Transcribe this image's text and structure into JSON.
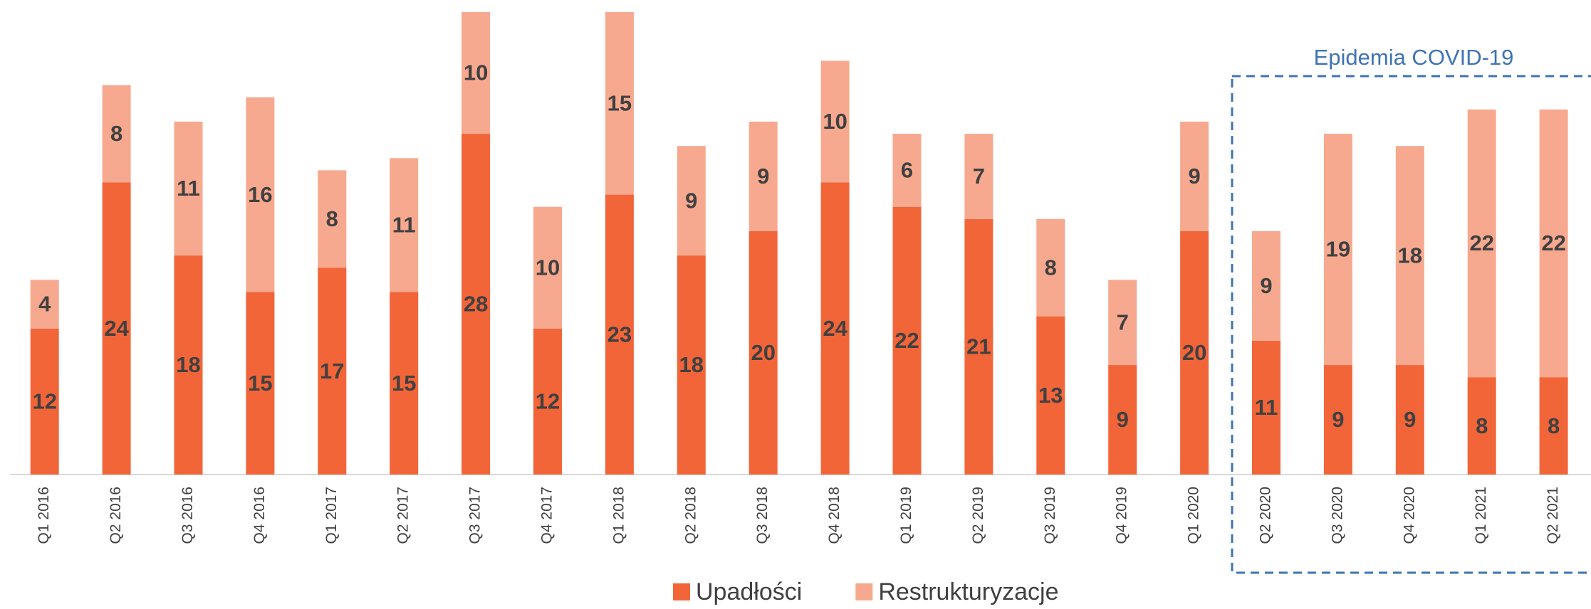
{
  "chart_data": {
    "type": "stacked_bar",
    "categories": [
      "Q1 2016",
      "Q2 2016",
      "Q3 2016",
      "Q4 2016",
      "Q1 2017",
      "Q2 2017",
      "Q3 2017",
      "Q4 2017",
      "Q1 2018",
      "Q2 2018",
      "Q3 2018",
      "Q4 2018",
      "Q1 2019",
      "Q2 2019",
      "Q3 2019",
      "Q4 2019",
      "Q1 2020",
      "Q2 2020",
      "Q3 2020",
      "Q4 2020",
      "Q1 2021",
      "Q2 2021"
    ],
    "series": [
      {
        "name": "Upadłości",
        "color": "#f26539",
        "values": [
          12,
          24,
          18,
          15,
          17,
          15,
          28,
          12,
          23,
          18,
          20,
          24,
          22,
          21,
          13,
          9,
          20,
          11,
          9,
          9,
          8,
          8
        ]
      },
      {
        "name": "Restrukturyzacje",
        "color": "#f7a98f",
        "values": [
          4,
          8,
          11,
          16,
          8,
          11,
          10,
          10,
          15,
          9,
          9,
          10,
          6,
          7,
          8,
          7,
          9,
          9,
          19,
          18,
          22,
          22
        ]
      }
    ],
    "annotation": "Epidemia COVID-19",
    "legend": "bottom"
  }
}
